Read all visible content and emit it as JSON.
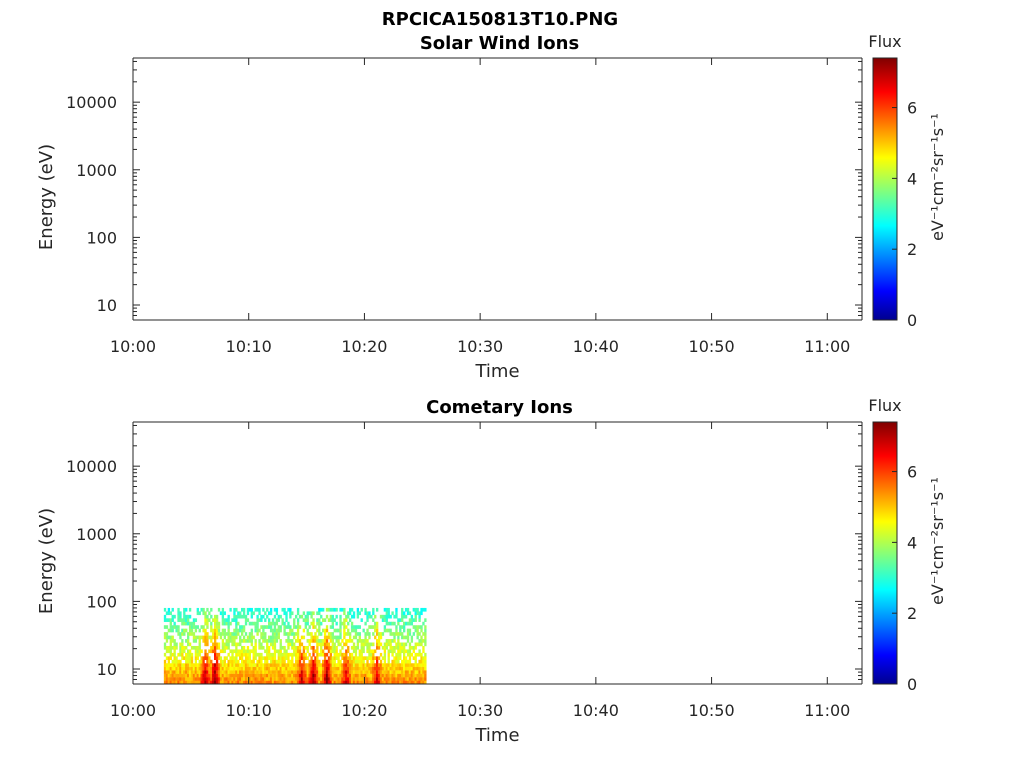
{
  "figure_title": "RPCICA150813T10.PNG",
  "chart_data": [
    {
      "type": "heatmap",
      "title": "Solar Wind Ions",
      "xlabel": "Time",
      "ylabel": "Energy (eV)",
      "x_ticks": [
        "10:00",
        "10:10",
        "10:20",
        "10:30",
        "10:40",
        "10:50",
        "11:00"
      ],
      "x_range_minutes": [
        0,
        63
      ],
      "y_scale": "log",
      "y_ticks": [
        "10",
        "100",
        "1000",
        "10000"
      ],
      "y_range": [
        6,
        45000
      ],
      "colorbar": {
        "title": "Flux",
        "label": "eV⁻¹cm⁻²sr⁻¹s⁻¹",
        "ticks": [
          "0",
          "2",
          "4",
          "6"
        ],
        "range": [
          0,
          7.4
        ],
        "colormap": "jet"
      },
      "grid": false,
      "data": []
    },
    {
      "type": "heatmap",
      "title": "Cometary Ions",
      "xlabel": "Time",
      "ylabel": "Energy (eV)",
      "x_ticks": [
        "10:00",
        "10:10",
        "10:20",
        "10:30",
        "10:40",
        "10:50",
        "11:00"
      ],
      "x_range_minutes": [
        0,
        63
      ],
      "y_scale": "log",
      "y_ticks": [
        "10",
        "100",
        "1000",
        "10000"
      ],
      "y_range": [
        6,
        45000
      ],
      "colorbar": {
        "title": "Flux",
        "label": "eV⁻¹cm⁻²sr⁻¹s⁻¹",
        "ticks": [
          "0",
          "2",
          "4",
          "6"
        ],
        "range": [
          0,
          7.4
        ],
        "colormap": "jet"
      },
      "grid": false,
      "data_extent": {
        "time_start": "10:02:40",
        "time_end": "10:25:20",
        "energy_min_ev": 6,
        "energy_max_ev": 80
      },
      "flux_bursts": [
        {
          "time": "10:06:10",
          "flux": 6.2
        },
        {
          "time": "10:07:00",
          "flux": 6.5
        },
        {
          "time": "10:14:30",
          "flux": 6.0
        },
        {
          "time": "10:15:30",
          "flux": 6.3
        },
        {
          "time": "10:16:40",
          "flux": 6.4
        },
        {
          "time": "10:18:20",
          "flux": 5.8
        },
        {
          "time": "10:21:00",
          "flux": 5.9
        }
      ]
    }
  ]
}
